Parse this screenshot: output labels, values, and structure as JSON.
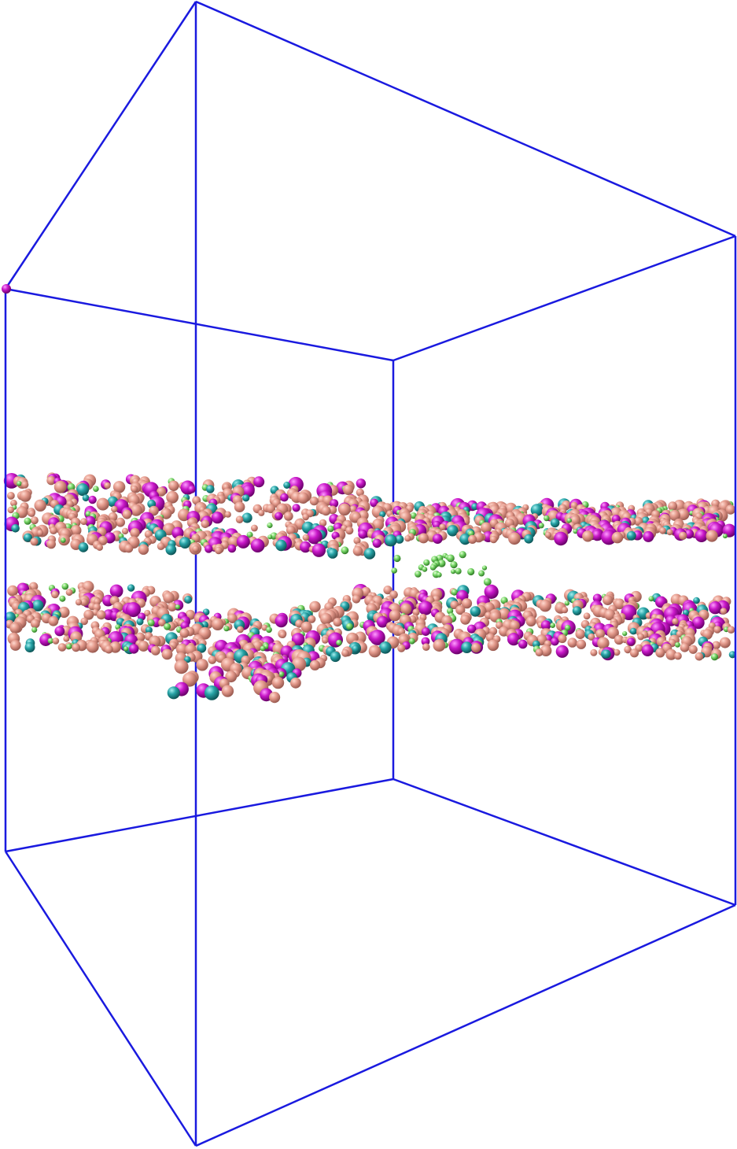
{
  "scene": {
    "type": "molecular-dynamics-render",
    "description_colors": {
      "box_edges": "#1a1adf",
      "bead_salmon": "#e49a8c",
      "bead_magenta": "#c818c8",
      "bead_teal": "#27a3a6",
      "bead_green": "#7ad86a",
      "background": "#ffffff"
    },
    "layers": [
      {
        "name": "upper-bilayer-leaflet"
      },
      {
        "name": "lower-bilayer-leaflet"
      }
    ]
  }
}
